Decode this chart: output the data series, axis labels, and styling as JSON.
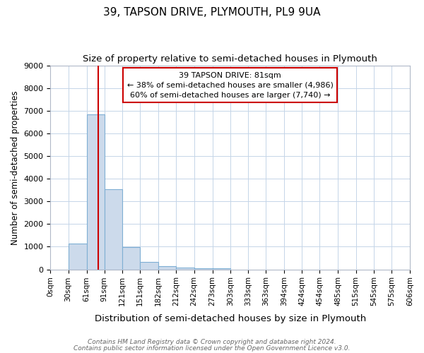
{
  "title": "39, TAPSON DRIVE, PLYMOUTH, PL9 9UA",
  "subtitle": "Size of property relative to semi-detached houses in Plymouth",
  "xlabel": "Distribution of semi-detached houses by size in Plymouth",
  "ylabel": "Number of semi-detached properties",
  "bin_edges": [
    0,
    30,
    61,
    91,
    121,
    151,
    182,
    212,
    242,
    273,
    303,
    333,
    363,
    394,
    424,
    454,
    485,
    515,
    545,
    575,
    606
  ],
  "bar_heights": [
    0,
    1150,
    6850,
    3550,
    970,
    330,
    130,
    90,
    60,
    60,
    0,
    0,
    0,
    0,
    0,
    0,
    0,
    0,
    0,
    0
  ],
  "bar_color": "#ccdaeb",
  "bar_edge_color": "#7fafd4",
  "property_sqm": 81,
  "property_line_color": "#cc0000",
  "ylim": [
    0,
    9000
  ],
  "yticks": [
    0,
    1000,
    2000,
    3000,
    4000,
    5000,
    6000,
    7000,
    8000,
    9000
  ],
  "annotation_line1": "39 TAPSON DRIVE: 81sqm",
  "annotation_line2": "← 38% of semi-detached houses are smaller (4,986)",
  "annotation_line3": "60% of semi-detached houses are larger (7,740) →",
  "footnote1": "Contains HM Land Registry data © Crown copyright and database right 2024.",
  "footnote2": "Contains public sector information licensed under the Open Government Licence v3.0.",
  "background_color": "#ffffff",
  "axes_bg_color": "#ffffff",
  "grid_color": "#c5d5e8",
  "title_fontsize": 11,
  "subtitle_fontsize": 9.5,
  "tick_labels": [
    "0sqm",
    "30sqm",
    "61sqm",
    "91sqm",
    "121sqm",
    "151sqm",
    "182sqm",
    "212sqm",
    "242sqm",
    "273sqm",
    "303sqm",
    "333sqm",
    "363sqm",
    "394sqm",
    "424sqm",
    "454sqm",
    "485sqm",
    "515sqm",
    "545sqm",
    "575sqm",
    "606sqm"
  ]
}
